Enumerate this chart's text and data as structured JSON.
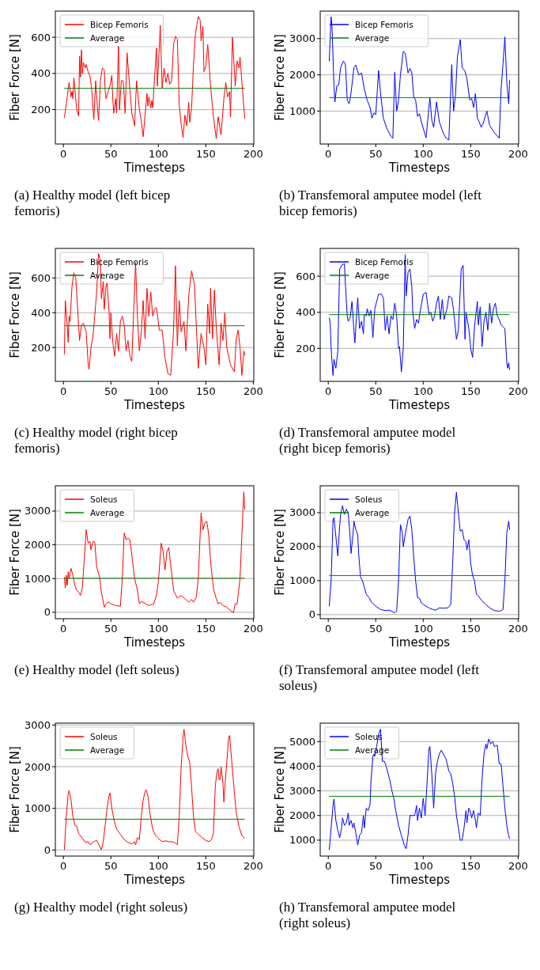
{
  "chart_data": [
    {
      "type": "line",
      "xlabel": "Timesteps",
      "ylabel": "Fiber Force [N]",
      "annotations": [
        "(a) Healthy model (left bicep femoris)"
      ],
      "xlim": [
        -8.5,
        200.5
      ],
      "xticks": [
        0,
        50,
        100,
        150,
        200
      ],
      "ylim": [
        10,
        745
      ],
      "yticks": [
        200,
        400,
        600
      ],
      "grid": "y",
      "legend": "top left",
      "series": [
        {
          "name": "Bicep Femoris",
          "color": "#ff0000",
          "x": [
            1,
            3,
            6,
            8,
            9,
            10,
            11,
            12,
            14,
            16,
            17,
            18,
            19,
            20,
            21,
            23,
            24,
            26,
            28,
            30,
            32,
            34,
            36,
            37,
            39,
            41,
            43,
            44,
            45,
            47,
            49,
            51,
            52,
            53,
            55,
            56,
            58,
            59,
            61,
            63,
            65,
            67,
            69,
            72,
            75,
            77,
            80,
            82,
            84,
            88,
            89,
            90,
            92,
            93,
            94,
            98,
            99,
            102,
            104,
            106,
            108,
            110,
            112,
            114,
            116,
            118,
            120,
            122,
            124,
            126,
            128,
            130,
            132,
            133,
            135,
            137,
            139,
            142,
            144,
            145,
            147,
            148,
            150,
            152,
            155,
            158,
            161,
            163,
            166,
            169,
            171,
            173,
            175,
            176,
            178,
            181,
            183,
            185,
            186,
            188,
            191
          ],
          "values": [
            155,
            230,
            350,
            270,
            300,
            260,
            375,
            320,
            200,
            165,
            495,
            380,
            530,
            400,
            460,
            430,
            450,
            410,
            385,
            300,
            145,
            360,
            200,
            140,
            360,
            430,
            420,
            300,
            260,
            300,
            330,
            390,
            260,
            180,
            260,
            180,
            550,
            200,
            360,
            360,
            180,
            515,
            380,
            180,
            110,
            360,
            200,
            140,
            50,
            290,
            220,
            270,
            210,
            250,
            210,
            540,
            330,
            665,
            320,
            430,
            350,
            400,
            340,
            360,
            560,
            605,
            590,
            220,
            120,
            45,
            170,
            110,
            240,
            130,
            210,
            450,
            620,
            715,
            695,
            580,
            660,
            410,
            440,
            560,
            330,
            160,
            40,
            160,
            60,
            260,
            350,
            270,
            300,
            160,
            600,
            330,
            470,
            430,
            490,
            350,
            150
          ]
        },
        {
          "name": "Average",
          "color": "#008000",
          "x": [
            1,
            191
          ],
          "values": [
            318,
            318
          ]
        }
      ]
    },
    {
      "type": "line",
      "xlabel": "Timesteps",
      "ylabel": "Fiber Force [N]",
      "annotations": [
        "(b) Transfemoral amputee model (left bicep femoris)"
      ],
      "xlim": [
        -8.5,
        200.5
      ],
      "xticks": [
        0,
        50,
        100,
        150,
        200
      ],
      "ylim": [
        90,
        3760
      ],
      "yticks": [
        1000,
        2000,
        3000
      ],
      "grid": "y",
      "legend": "top left",
      "series": [
        {
          "name": "Bicep Femoris",
          "color": "#0000ff",
          "x": [
            1,
            3,
            4,
            6,
            7,
            9,
            11,
            13,
            16,
            18,
            20,
            22,
            24,
            27,
            29,
            32,
            35,
            38,
            41,
            44,
            46,
            48,
            50,
            53,
            55,
            58,
            62,
            66,
            68,
            70,
            72,
            74,
            76,
            79,
            81,
            84,
            86,
            88,
            90,
            92,
            94,
            96,
            98,
            103,
            107,
            109,
            111,
            114,
            117,
            121,
            124,
            127,
            130,
            132,
            134,
            136,
            139,
            141,
            144,
            146,
            149,
            151,
            153,
            155,
            157,
            159,
            161,
            163,
            167,
            170,
            175,
            180,
            182,
            184,
            186,
            188,
            190,
            191
          ],
          "values": [
            2370,
            3600,
            3300,
            1700,
            1250,
            1700,
            1720,
            2200,
            2380,
            2300,
            1300,
            1200,
            1500,
            2200,
            2270,
            2000,
            2050,
            1600,
            1300,
            1100,
            800,
            950,
            900,
            2120,
            1500,
            800,
            500,
            300,
            250,
            2070,
            1000,
            1300,
            2000,
            2650,
            2600,
            2050,
            2180,
            2050,
            1400,
            1300,
            850,
            930,
            700,
            260,
            1380,
            750,
            550,
            1250,
            700,
            400,
            250,
            200,
            2280,
            1000,
            1450,
            2500,
            2970,
            2200,
            2100,
            1900,
            1300,
            1350,
            1100,
            1480,
            800,
            700,
            550,
            650,
            1000,
            600,
            400,
            250,
            1600,
            2300,
            3050,
            1800,
            1200,
            1850
          ]
        },
        {
          "name": "Average",
          "color": "#008000",
          "x": [
            1,
            191
          ],
          "values": [
            1370,
            1370
          ]
        }
      ]
    },
    {
      "type": "line",
      "xlabel": "Timesteps",
      "ylabel": "Fiber Force [N]",
      "annotations": [
        "(c) Healthy model (right bicep femoris)"
      ],
      "xlim": [
        -8.5,
        200.5
      ],
      "xticks": [
        0,
        50,
        100,
        150,
        200
      ],
      "ylim": [
        5,
        770
      ],
      "yticks": [
        200,
        400,
        600
      ],
      "grid": "y",
      "legend": "top left",
      "series": [
        {
          "name": "Bicep Femoris",
          "color": "#ff0000",
          "x": [
            1,
            2,
            4,
            5,
            6,
            7,
            9,
            11,
            13,
            15,
            17,
            19,
            21,
            24,
            26,
            27,
            29,
            31,
            33,
            35,
            37,
            39,
            40,
            42,
            43,
            45,
            46,
            48,
            49,
            50,
            52,
            54,
            56,
            58,
            60,
            62,
            64,
            66,
            68,
            70,
            72,
            76,
            78,
            80,
            82,
            84,
            86,
            88,
            90,
            92,
            94,
            96,
            98,
            101,
            104,
            107,
            110,
            113,
            116,
            118,
            120,
            122,
            124,
            127,
            129,
            132,
            135,
            138,
            140,
            142,
            145,
            148,
            150,
            152,
            154,
            155,
            157,
            159,
            161,
            164,
            166,
            168,
            170,
            172,
            176,
            180,
            182,
            184,
            186,
            188,
            190,
            191
          ],
          "values": [
            160,
            470,
            330,
            230,
            380,
            350,
            550,
            630,
            600,
            420,
            240,
            330,
            340,
            290,
            110,
            75,
            200,
            260,
            380,
            520,
            740,
            700,
            480,
            580,
            420,
            560,
            570,
            410,
            250,
            400,
            230,
            150,
            280,
            180,
            350,
            380,
            330,
            180,
            240,
            150,
            120,
            690,
            370,
            180,
            290,
            470,
            250,
            540,
            380,
            520,
            380,
            420,
            430,
            300,
            300,
            140,
            50,
            40,
            300,
            670,
            210,
            470,
            290,
            350,
            180,
            500,
            640,
            560,
            320,
            80,
            280,
            200,
            100,
            450,
            280,
            540,
            250,
            530,
            310,
            100,
            340,
            240,
            400,
            200,
            100,
            60,
            250,
            300,
            200,
            40,
            180,
            155
          ]
        },
        {
          "name": "Average",
          "color": "#008000",
          "x": [
            1,
            191
          ],
          "values": [
            325,
            325
          ]
        }
      ]
    },
    {
      "type": "line",
      "xlabel": "Timesteps",
      "ylabel": "Fiber Force [N]",
      "annotations": [
        "(d) Transfemoral amputee model (right bicep femoris)"
      ],
      "xlim": [
        -8.5,
        200.5
      ],
      "xticks": [
        0,
        50,
        100,
        150,
        200
      ],
      "ylim": [
        17,
        754
      ],
      "yticks": [
        200,
        400,
        600
      ],
      "grid": "y",
      "legend": "top left",
      "series": [
        {
          "name": "Bicep Femoris",
          "color": "#0000ff",
          "x": [
            1,
            2,
            3,
            5,
            6,
            8,
            10,
            12,
            14,
            17,
            18,
            20,
            21,
            23,
            25,
            27,
            28,
            30,
            31,
            33,
            35,
            37,
            38,
            40,
            41,
            43,
            45,
            47,
            49,
            53,
            56,
            58,
            60,
            62,
            64,
            66,
            68,
            70,
            72,
            74,
            75,
            77,
            79,
            81,
            82,
            84,
            86,
            88,
            89,
            91,
            93,
            95,
            97,
            100,
            103,
            106,
            108,
            110,
            112,
            114,
            116,
            118,
            120,
            122,
            125,
            127,
            130,
            132,
            135,
            137,
            140,
            142,
            144,
            145,
            148,
            150,
            152,
            154,
            157,
            158,
            160,
            162,
            164,
            166,
            168,
            170,
            172,
            174,
            176,
            178,
            180,
            182,
            184,
            186,
            188,
            189,
            190,
            191
          ],
          "values": [
            370,
            340,
            200,
            50,
            140,
            90,
            180,
            640,
            660,
            670,
            560,
            380,
            350,
            370,
            460,
            300,
            230,
            400,
            480,
            310,
            350,
            280,
            390,
            380,
            420,
            380,
            410,
            260,
            420,
            500,
            500,
            480,
            300,
            380,
            280,
            380,
            360,
            450,
            380,
            200,
            210,
            70,
            200,
            720,
            490,
            620,
            640,
            540,
            400,
            310,
            360,
            340,
            410,
            500,
            510,
            390,
            400,
            350,
            380,
            450,
            490,
            360,
            470,
            360,
            420,
            490,
            480,
            410,
            250,
            300,
            640,
            660,
            250,
            400,
            310,
            200,
            150,
            320,
            460,
            330,
            430,
            210,
            350,
            400,
            300,
            450,
            340,
            420,
            450,
            380,
            360,
            330,
            320,
            310,
            120,
            90,
            120,
            80
          ]
        },
        {
          "name": "Average",
          "color": "#008000",
          "x": [
            1,
            191
          ],
          "values": [
            387,
            387
          ]
        }
      ]
    },
    {
      "type": "line",
      "xlabel": "Timesteps",
      "ylabel": "Fiber Force [N]",
      "annotations": [
        "(e) Healthy model (left soleus)"
      ],
      "xlim": [
        -8.5,
        200.5
      ],
      "xticks": [
        0,
        50,
        100,
        150,
        200
      ],
      "ylim": [
        -190,
        3750
      ],
      "yticks": [
        0,
        1000,
        2000,
        3000
      ],
      "grid": "y",
      "legend": "top left",
      "series": [
        {
          "name": "Soleus",
          "color": "#ff0000",
          "x": [
            1,
            2,
            3,
            4,
            5,
            6,
            8,
            10,
            12,
            14,
            16,
            18,
            20,
            22,
            24,
            26,
            28,
            29,
            31,
            33,
            35,
            38,
            40,
            43,
            45,
            47,
            50,
            55,
            60,
            62,
            64,
            66,
            68,
            70,
            72,
            75,
            78,
            80,
            82,
            85,
            90,
            95,
            98,
            100,
            103,
            105,
            107,
            109,
            111,
            113,
            116,
            120,
            124,
            128,
            132,
            135,
            137,
            140,
            142,
            145,
            147,
            149,
            151,
            153,
            155,
            158,
            161,
            163,
            165,
            168,
            172,
            176,
            179,
            181,
            183,
            186,
            189,
            190,
            191
          ],
          "values": [
            1050,
            720,
            1100,
            800,
            1200,
            1000,
            1300,
            1100,
            800,
            650,
            600,
            500,
            750,
            1600,
            2450,
            2050,
            2100,
            1850,
            2100,
            2080,
            1350,
            1050,
            600,
            150,
            250,
            310,
            250,
            200,
            180,
            1000,
            2350,
            2150,
            2200,
            2150,
            1700,
            1000,
            650,
            250,
            320,
            280,
            200,
            250,
            500,
            900,
            2050,
            1800,
            1250,
            1800,
            1920,
            1400,
            650,
            420,
            500,
            400,
            300,
            380,
            300,
            450,
            1000,
            2950,
            2450,
            2650,
            2700,
            2300,
            1500,
            700,
            400,
            250,
            300,
            200,
            150,
            50,
            -10,
            250,
            250,
            1000,
            3000,
            3570,
            3050
          ]
        },
        {
          "name": "Average",
          "color": "#008000",
          "x": [
            1,
            191
          ],
          "values": [
            1010,
            1010
          ]
        }
      ]
    },
    {
      "type": "line",
      "xlabel": "Timesteps",
      "ylabel": "Fiber Force [N]",
      "annotations": [
        "(f) Transfemoral amputee model (left soleus)"
      ],
      "xlim": [
        -8.5,
        200.5
      ],
      "xticks": [
        0,
        50,
        100,
        150,
        200
      ],
      "ylim": [
        -120,
        3790
      ],
      "yticks": [
        0,
        1000,
        2000,
        3000
      ],
      "grid": "y",
      "legend": "top left",
      "series": [
        {
          "name": "Soleus",
          "color": "#0000ff",
          "x": [
            1,
            3,
            5,
            6,
            8,
            10,
            12,
            13,
            15,
            17,
            19,
            21,
            23,
            24,
            26,
            27,
            29,
            31,
            32,
            34,
            36,
            38,
            40,
            43,
            46,
            50,
            55,
            60,
            64,
            67,
            70,
            72,
            74,
            76,
            78,
            79,
            81,
            84,
            86,
            88,
            90,
            92,
            94,
            96,
            98,
            100,
            103,
            106,
            110,
            113,
            117,
            121,
            126,
            129,
            131,
            133,
            135,
            137,
            139,
            141,
            143,
            145,
            146,
            148,
            150,
            152,
            154,
            156,
            158,
            162,
            166,
            170,
            175,
            180,
            182,
            184,
            186,
            188,
            190,
            191
          ],
          "values": [
            250,
            1000,
            2800,
            2850,
            2300,
            1730,
            2600,
            2950,
            3200,
            2950,
            3100,
            3000,
            2300,
            1800,
            2350,
            2750,
            2500,
            2350,
            1800,
            1100,
            1000,
            800,
            600,
            500,
            350,
            250,
            150,
            120,
            130,
            100,
            50,
            100,
            1000,
            2650,
            2400,
            2000,
            2350,
            2800,
            2900,
            2500,
            1700,
            1000,
            500,
            480,
            350,
            300,
            250,
            200,
            150,
            130,
            200,
            190,
            200,
            300,
            1500,
            3000,
            3600,
            3000,
            2450,
            2500,
            2200,
            2150,
            1900,
            2200,
            1500,
            1150,
            1000,
            600,
            550,
            400,
            300,
            200,
            120,
            100,
            120,
            150,
            1000,
            2400,
            2750,
            2500
          ]
        },
        {
          "name": "Average",
          "color": "#008000",
          "x": [
            1,
            191
          ],
          "values": [
            1150,
            1150
          ]
        }
      ]
    },
    {
      "type": "line",
      "xlabel": "Timesteps",
      "ylabel": "Fiber Force [N]",
      "annotations": [
        "(g) Healthy model (right soleus)"
      ],
      "xlim": [
        -8.5,
        200.5
      ],
      "xticks": [
        0,
        50,
        100,
        150,
        200
      ],
      "ylim": [
        -145,
        3045
      ],
      "yticks": [
        0,
        1000,
        2000,
        3000
      ],
      "grid": "y",
      "legend": "top left",
      "series": [
        {
          "name": "Soleus",
          "color": "#ff0000",
          "x": [
            1,
            3,
            5,
            6,
            8,
            10,
            12,
            14,
            16,
            20,
            23,
            26,
            28,
            32,
            35,
            38,
            40,
            42,
            44,
            46,
            48,
            49,
            51,
            53,
            56,
            60,
            64,
            68,
            72,
            75,
            76,
            78,
            80,
            82,
            84,
            86,
            87,
            89,
            91,
            94,
            97,
            100,
            104,
            108,
            111,
            114,
            117,
            120,
            122,
            124,
            126,
            127,
            129,
            131,
            133,
            135,
            137,
            139,
            142,
            146,
            150,
            153,
            156,
            158,
            159,
            160,
            162,
            163,
            164,
            165,
            166,
            168,
            169,
            171,
            173,
            174,
            175,
            177,
            180,
            182,
            185,
            188,
            191
          ],
          "values": [
            0,
            800,
            1350,
            1430,
            1200,
            800,
            600,
            580,
            400,
            280,
            180,
            200,
            130,
            200,
            230,
            100,
            10,
            200,
            600,
            1000,
            1300,
            1370,
            1000,
            750,
            500,
            380,
            250,
            180,
            150,
            200,
            120,
            300,
            250,
            800,
            1200,
            1400,
            1450,
            1300,
            900,
            500,
            350,
            280,
            200,
            220,
            200,
            200,
            180,
            130,
            800,
            2000,
            2700,
            2900,
            2500,
            2250,
            2100,
            1500,
            800,
            450,
            380,
            300,
            230,
            200,
            250,
            400,
            1000,
            1550,
            1900,
            1950,
            1680,
            1700,
            2000,
            1600,
            1150,
            1800,
            2400,
            2700,
            2750,
            2200,
            1400,
            900,
            550,
            350,
            280
          ]
        },
        {
          "name": "Average",
          "color": "#008000",
          "x": [
            1,
            191
          ],
          "values": [
            740,
            740
          ]
        }
      ]
    },
    {
      "type": "line",
      "xlabel": "Timesteps",
      "ylabel": "Fiber Force [N]",
      "annotations": [
        "(h) Transfemoral amputee model (right soleus)"
      ],
      "xlim": [
        -8.5,
        200.5
      ],
      "xticks": [
        0,
        50,
        100,
        150,
        200
      ],
      "ylim": [
        355,
        5745
      ],
      "yticks": [
        1000,
        2000,
        3000,
        4000,
        5000
      ],
      "grid": "y",
      "legend": "top left",
      "series": [
        {
          "name": "Soleus",
          "color": "#0000ff",
          "x": [
            1,
            3,
            5,
            6,
            8,
            10,
            12,
            14,
            15,
            17,
            19,
            21,
            22,
            24,
            26,
            27,
            29,
            31,
            33,
            35,
            37,
            38,
            40,
            42,
            44,
            45,
            47,
            48,
            49,
            51,
            53,
            55,
            57,
            59,
            61,
            63,
            65,
            67,
            69,
            71,
            74,
            77,
            80,
            82,
            84,
            86,
            88,
            91,
            93,
            94,
            96,
            98,
            100,
            102,
            104,
            106,
            107,
            109,
            111,
            113,
            115,
            117,
            119,
            121,
            124,
            127,
            129,
            131,
            133,
            135,
            137,
            139,
            141,
            143,
            145,
            146,
            148,
            150,
            151,
            153,
            155,
            156,
            158,
            160,
            162,
            164,
            166,
            167,
            169,
            171,
            173,
            175,
            178,
            180,
            182,
            184,
            186,
            188,
            190,
            191
          ],
          "values": [
            600,
            1500,
            2400,
            2670,
            1800,
            1400,
            1100,
            1500,
            1900,
            1600,
            1700,
            2100,
            1600,
            1800,
            1500,
            1700,
            1300,
            800,
            1200,
            1300,
            2000,
            1500,
            2300,
            2200,
            2450,
            3400,
            4400,
            4500,
            4400,
            4800,
            5300,
            5500,
            4200,
            4200,
            4000,
            3700,
            3400,
            3000,
            2700,
            2200,
            1600,
            1200,
            800,
            650,
            1200,
            2000,
            2000,
            2000,
            2400,
            1800,
            2300,
            1900,
            2700,
            2000,
            3300,
            4700,
            4800,
            3700,
            2300,
            3700,
            4200,
            4500,
            4650,
            4500,
            4300,
            3800,
            3700,
            3300,
            2800,
            2000,
            1500,
            1000,
            1000,
            1500,
            2200,
            1700,
            2300,
            2100,
            1900,
            2200,
            1800,
            1500,
            2100,
            2000,
            3500,
            4500,
            4900,
            4700,
            5100,
            4900,
            5000,
            4800,
            4850,
            4100,
            4100,
            3200,
            2300,
            1600,
            1200,
            1050
          ]
        },
        {
          "name": "Average",
          "color": "#008000",
          "x": [
            1,
            191
          ],
          "values": [
            2780,
            2780
          ]
        }
      ]
    }
  ]
}
